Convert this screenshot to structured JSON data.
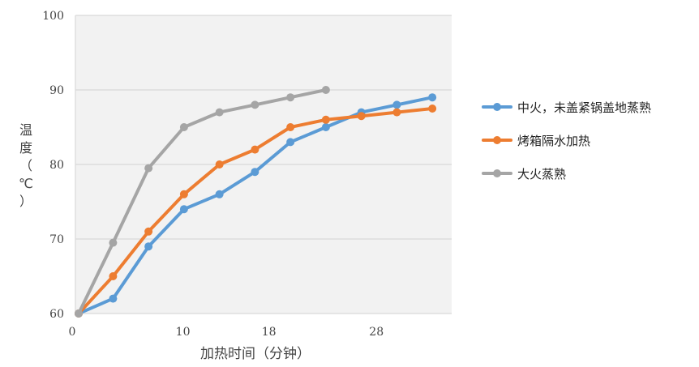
{
  "chart_data": {
    "type": "line",
    "xlabel": "加热时间（分钟）",
    "ylabel": "温度（℃）",
    "ylabel_chars": [
      "温",
      "度",
      "（",
      "℃",
      "）"
    ],
    "xlim": [
      0,
      35
    ],
    "ylim": [
      60,
      100
    ],
    "x_ticks": [
      0,
      10,
      18,
      28
    ],
    "y_ticks": [
      60,
      70,
      80,
      90,
      100
    ],
    "grid": "horizontal",
    "legend_position": "right",
    "series": [
      {
        "name": "中火，未盖紧锅盖地蒸熟",
        "color": "#5B9BD5",
        "x": [
          0.3,
          3.5,
          6.8,
          10.1,
          13.4,
          16.7,
          20.0,
          23.3,
          26.6,
          29.9,
          33.2
        ],
        "y": [
          60,
          62,
          69,
          74,
          76,
          79,
          83,
          85,
          87,
          88,
          89
        ]
      },
      {
        "name": "烤箱隔水加热",
        "color": "#ED7D31",
        "x": [
          0.3,
          3.5,
          6.8,
          10.1,
          13.4,
          16.7,
          20.0,
          23.3,
          26.6,
          29.9,
          33.2
        ],
        "y": [
          60,
          65,
          71,
          76,
          80,
          82,
          85,
          86,
          86.5,
          87,
          87.5
        ]
      },
      {
        "name": "大火蒸熟",
        "color": "#A5A5A5",
        "x": [
          0.3,
          3.5,
          6.8,
          10.1,
          13.4,
          16.7,
          20.0,
          23.3
        ],
        "y": [
          60,
          69.5,
          79.5,
          85,
          87,
          88,
          89,
          90
        ]
      }
    ]
  }
}
